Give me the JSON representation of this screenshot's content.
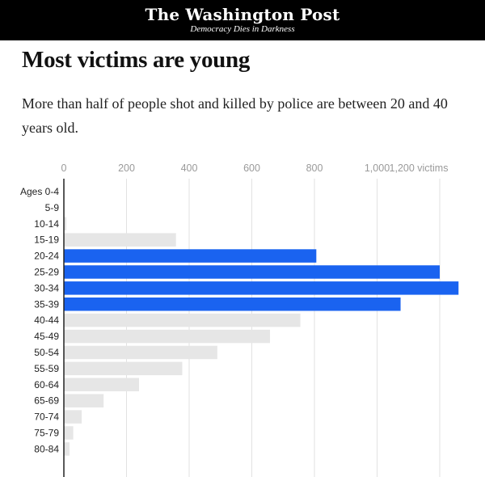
{
  "masthead": {
    "logo": "The Washington Post",
    "tagline": "Democracy Dies in Darkness"
  },
  "headline": "Most victims are young",
  "dek": "More than half of people shot and killed by police are between 20 and 40 years old.",
  "colors": {
    "highlight": "#1a63f0",
    "muted": "#e6e6e6",
    "masthead_bg": "#000000"
  },
  "chart_data": {
    "type": "bar",
    "orientation": "horizontal",
    "title": "",
    "xlabel": "",
    "ylabel": "",
    "xlim": [
      0,
      1200
    ],
    "x_ticks": [
      0,
      200,
      400,
      600,
      800,
      1000,
      1200
    ],
    "x_tick_labels": [
      "0",
      "200",
      "400",
      "600",
      "800",
      "1,000",
      "1,200 victims"
    ],
    "grid": true,
    "categories": [
      "Ages 0-4",
      "5-9",
      "10-14",
      "15-19",
      "20-24",
      "25-29",
      "30-34",
      "35-39",
      "40-44",
      "45-49",
      "50-54",
      "55-59",
      "60-64",
      "65-69",
      "70-74",
      "75-79",
      "80-84"
    ],
    "values": [
      2,
      1,
      8,
      358,
      806,
      1200,
      1260,
      1075,
      755,
      658,
      490,
      378,
      240,
      127,
      57,
      30,
      18
    ],
    "highlighted": [
      false,
      false,
      false,
      false,
      true,
      true,
      true,
      true,
      false,
      false,
      false,
      false,
      false,
      false,
      false,
      false,
      false
    ]
  }
}
